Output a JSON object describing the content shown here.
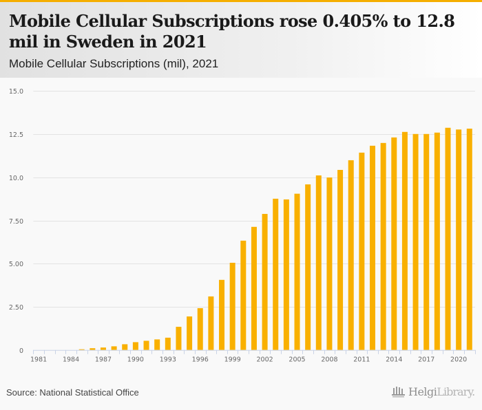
{
  "header": {
    "title": "Mobile Cellular Subscriptions rose 0.405% to 12.8 mil in Sweden in 2021",
    "subtitle": "Mobile Cellular Subscriptions (mil), 2021"
  },
  "footer": {
    "source": "Source: National Statistical Office",
    "logo_part1": "Helgi",
    "logo_part2": "Library."
  },
  "colors": {
    "accent": "#f5ae00",
    "bar": "#f9b000",
    "grid": "#e3e3e3",
    "axis": "#c9d3e6"
  },
  "chart_data": {
    "type": "bar",
    "title": "Mobile Cellular Subscriptions (mil), 2021",
    "xlabel": "",
    "ylabel": "",
    "ylim": [
      0,
      15
    ],
    "grid": true,
    "legend": "none",
    "yticks": [
      0,
      2.5,
      5,
      7.5,
      10,
      12.5,
      15
    ],
    "ytick_labels": [
      "0",
      "2.50",
      "5.00",
      "7.50",
      "10.0",
      "12.5",
      "15.0"
    ],
    "xtick_labels": [
      "1981",
      "1984",
      "1987",
      "1990",
      "1993",
      "1996",
      "1999",
      "2002",
      "2005",
      "2008",
      "2011",
      "2014",
      "2017",
      "2020"
    ],
    "categories": [
      "1981",
      "1982",
      "1983",
      "1984",
      "1985",
      "1986",
      "1987",
      "1988",
      "1989",
      "1990",
      "1991",
      "1992",
      "1993",
      "1994",
      "1995",
      "1996",
      "1997",
      "1998",
      "1999",
      "2000",
      "2001",
      "2002",
      "2003",
      "2004",
      "2005",
      "2006",
      "2007",
      "2008",
      "2009",
      "2010",
      "2011",
      "2012",
      "2013",
      "2014",
      "2015",
      "2016",
      "2017",
      "2018",
      "2019",
      "2020",
      "2021"
    ],
    "series": [
      {
        "name": "Mobile Cellular Subscriptions (mil)",
        "values": [
          0,
          0,
          0,
          0,
          0.04,
          0.1,
          0.14,
          0.21,
          0.33,
          0.45,
          0.53,
          0.61,
          0.71,
          1.34,
          1.94,
          2.42,
          3.1,
          4.06,
          5.05,
          6.33,
          7.13,
          7.88,
          8.76,
          8.72,
          9.05,
          9.59,
          10.11,
          9.99,
          10.43,
          10.99,
          11.43,
          11.83,
          11.99,
          12.31,
          12.63,
          12.51,
          12.51,
          12.59,
          12.87,
          12.77,
          12.82
        ]
      }
    ]
  }
}
